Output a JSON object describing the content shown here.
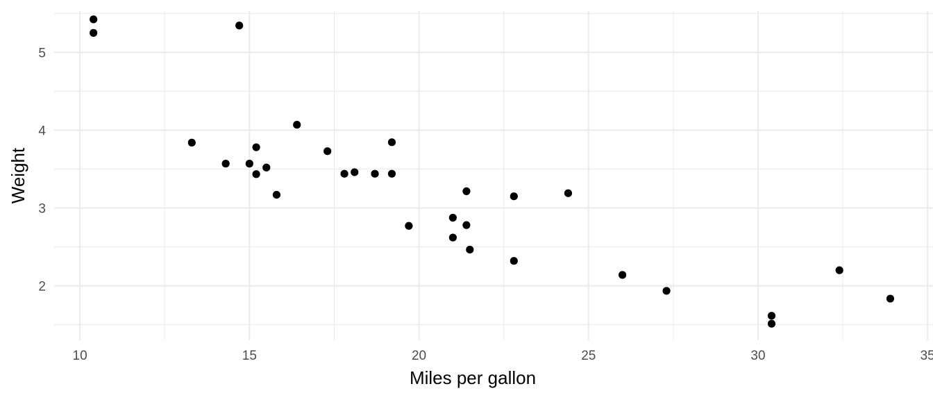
{
  "chart_data": {
    "type": "scatter",
    "title": "",
    "xlabel": "Miles per gallon",
    "ylabel": "Weight",
    "xlim": [
      9.24,
      35.16
    ],
    "ylim": [
      1.3,
      5.53
    ],
    "x_ticks": [
      10,
      15,
      20,
      25,
      30,
      35
    ],
    "y_ticks": [
      2,
      3,
      4,
      5
    ],
    "grid": true,
    "legend": "none",
    "point_color": "#000000",
    "points": [
      {
        "x": 21.0,
        "y": 2.62
      },
      {
        "x": 21.0,
        "y": 2.875
      },
      {
        "x": 22.8,
        "y": 2.32
      },
      {
        "x": 21.4,
        "y": 3.215
      },
      {
        "x": 18.7,
        "y": 3.44
      },
      {
        "x": 18.1,
        "y": 3.46
      },
      {
        "x": 14.3,
        "y": 3.57
      },
      {
        "x": 24.4,
        "y": 3.19
      },
      {
        "x": 22.8,
        "y": 3.15
      },
      {
        "x": 19.2,
        "y": 3.44
      },
      {
        "x": 17.8,
        "y": 3.44
      },
      {
        "x": 16.4,
        "y": 4.07
      },
      {
        "x": 17.3,
        "y": 3.73
      },
      {
        "x": 15.2,
        "y": 3.78
      },
      {
        "x": 10.4,
        "y": 5.25
      },
      {
        "x": 10.4,
        "y": 5.424
      },
      {
        "x": 14.7,
        "y": 5.345
      },
      {
        "x": 32.4,
        "y": 2.2
      },
      {
        "x": 30.4,
        "y": 1.615
      },
      {
        "x": 33.9,
        "y": 1.835
      },
      {
        "x": 21.5,
        "y": 2.465
      },
      {
        "x": 15.5,
        "y": 3.52
      },
      {
        "x": 15.2,
        "y": 3.435
      },
      {
        "x": 13.3,
        "y": 3.84
      },
      {
        "x": 19.2,
        "y": 3.845
      },
      {
        "x": 27.3,
        "y": 1.935
      },
      {
        "x": 26.0,
        "y": 2.14
      },
      {
        "x": 30.4,
        "y": 1.513
      },
      {
        "x": 15.8,
        "y": 3.17
      },
      {
        "x": 19.7,
        "y": 2.77
      },
      {
        "x": 15.0,
        "y": 3.57
      },
      {
        "x": 21.4,
        "y": 2.78
      }
    ]
  }
}
